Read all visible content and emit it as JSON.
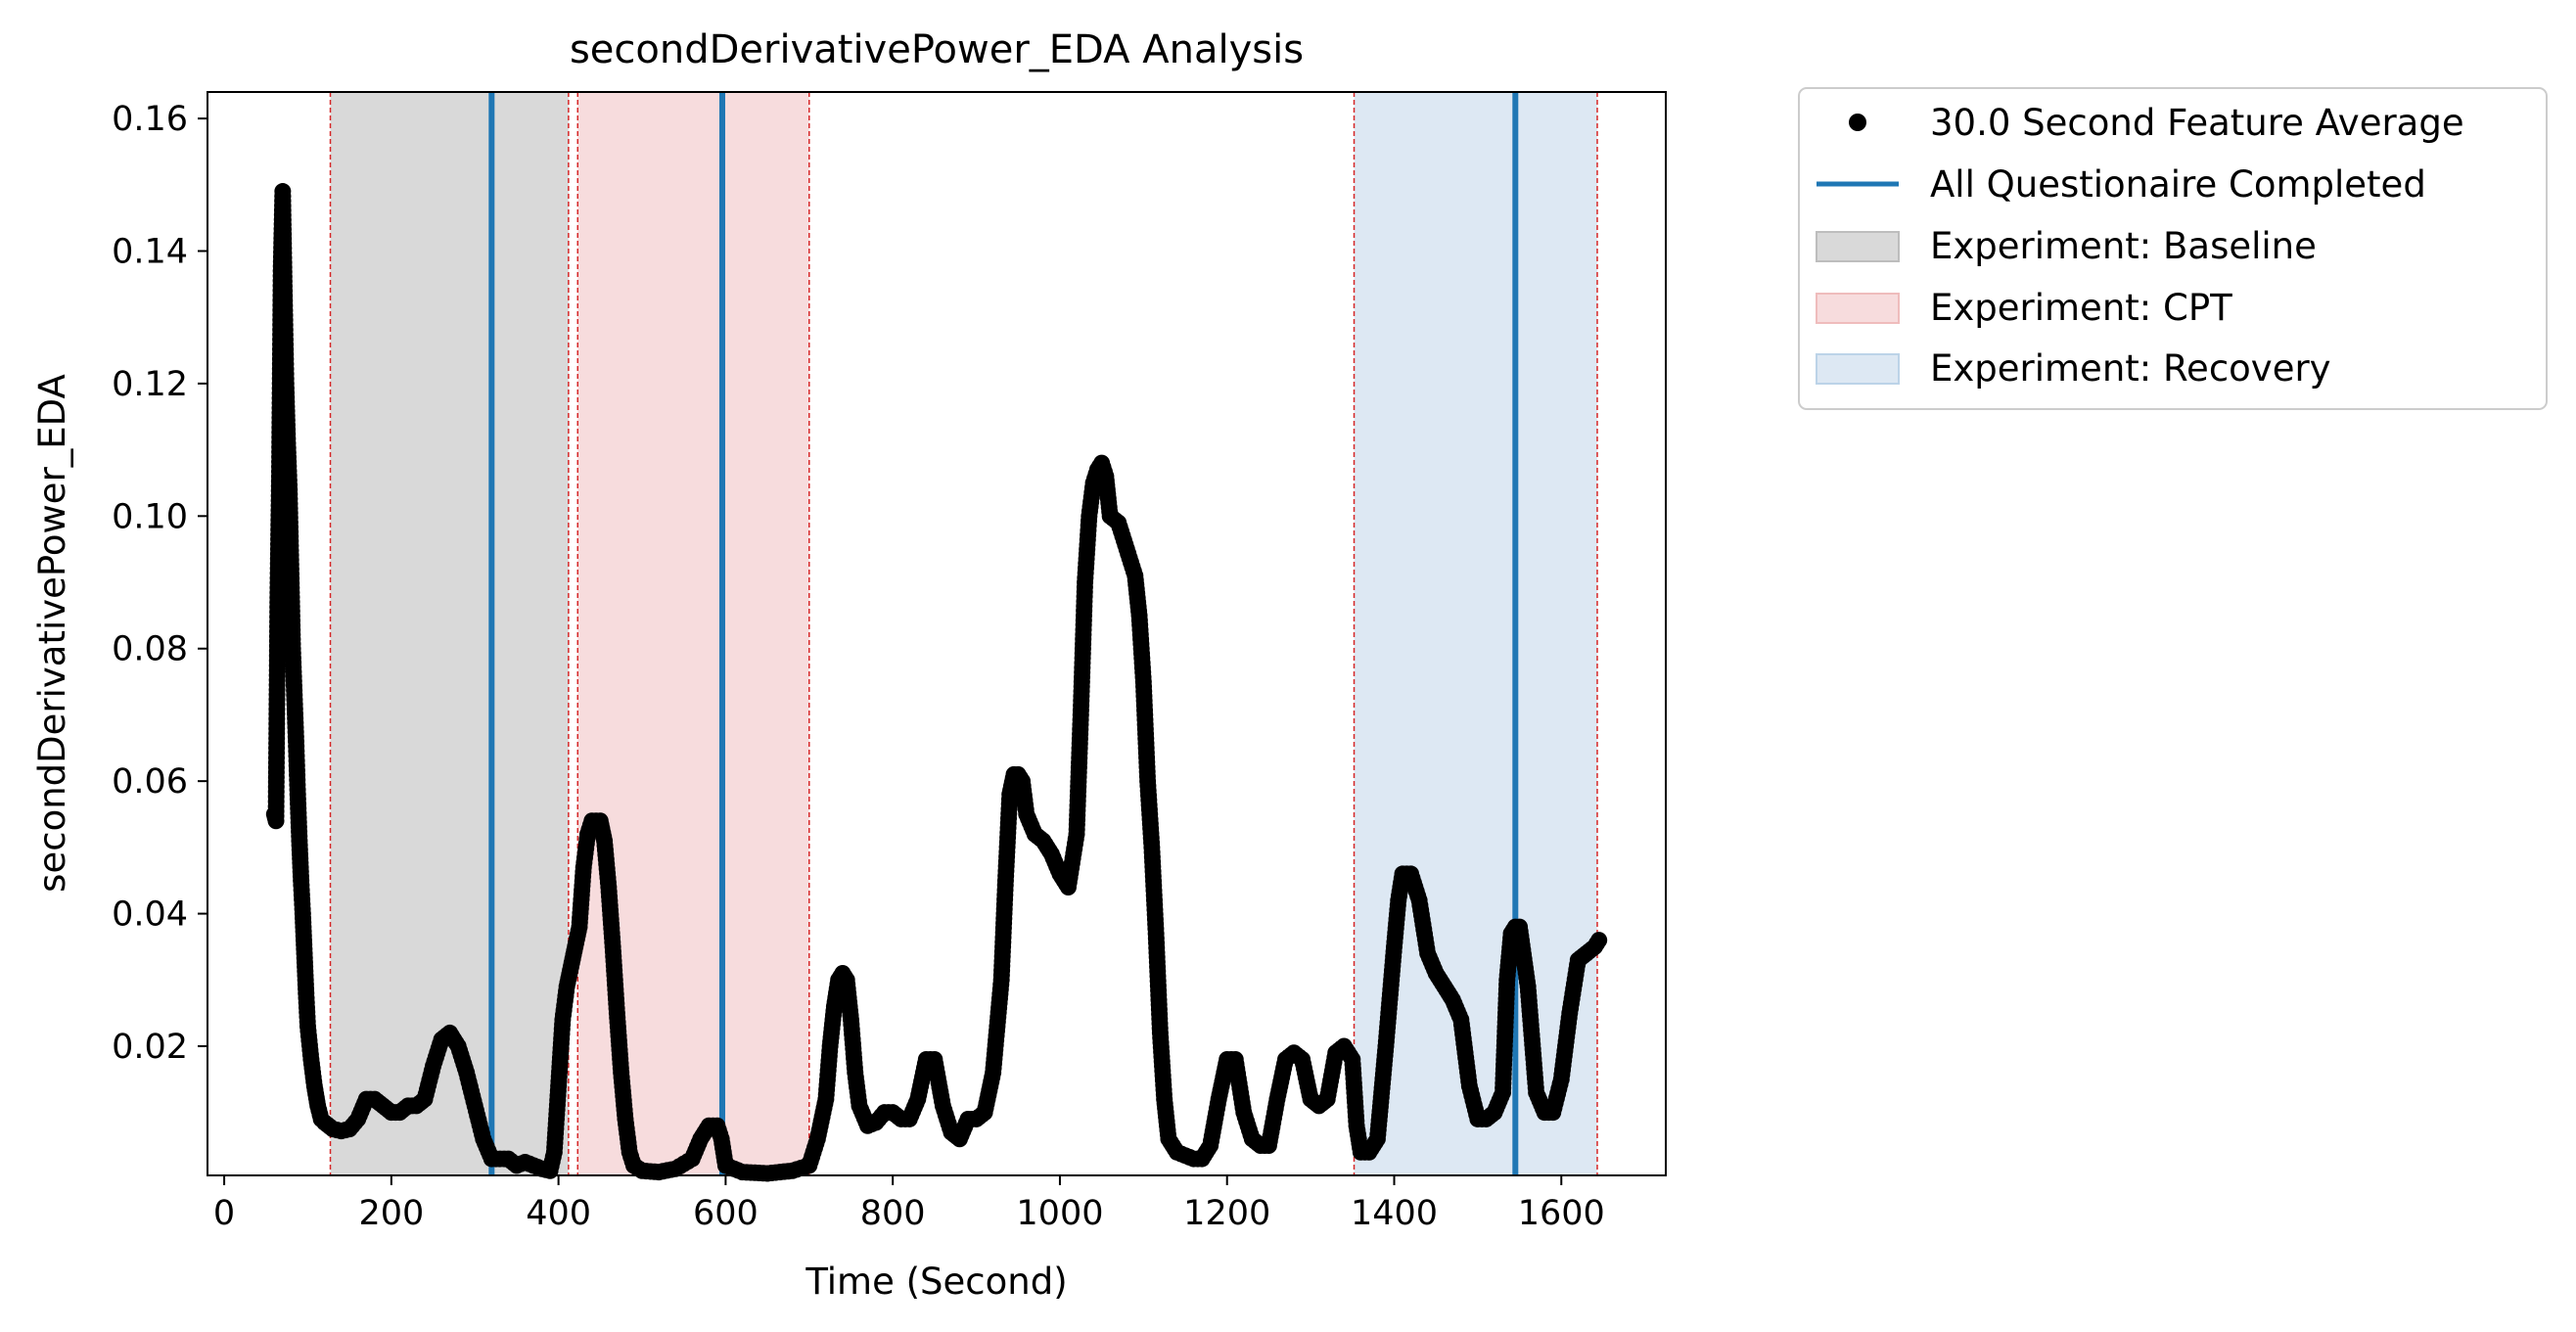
{
  "chart_data": {
    "type": "scatter",
    "title": "secondDerivativePower_EDA Analysis",
    "xlabel": "Time (Second)",
    "ylabel": "secondDerivativePower_EDA",
    "xlim": [
      -20,
      1725
    ],
    "ylim": [
      0.0005,
      0.164
    ],
    "xticks": [
      0,
      200,
      400,
      600,
      800,
      1000,
      1200,
      1400,
      1600
    ],
    "xtick_labels": [
      "0",
      "200",
      "400",
      "600",
      "800",
      "1000",
      "1200",
      "1400",
      "1600"
    ],
    "yticks": [
      0.02,
      0.04,
      0.06,
      0.08,
      0.1,
      0.12,
      0.14,
      0.16
    ],
    "ytick_labels": [
      "0.02",
      "0.04",
      "0.06",
      "0.08",
      "0.10",
      "0.12",
      "0.14",
      "0.16"
    ],
    "grid": false,
    "legend_position": "outside-top-right",
    "series": [
      {
        "name": "30.0 Second Feature Average",
        "marker": "circle",
        "color": "#000000",
        "points": [
          [
            60,
            0.055
          ],
          [
            62,
            0.054
          ],
          [
            64,
            0.087
          ],
          [
            66,
            0.106
          ],
          [
            68,
            0.137
          ],
          [
            70,
            0.149
          ],
          [
            72,
            0.134
          ],
          [
            74,
            0.12
          ],
          [
            76,
            0.111
          ],
          [
            78,
            0.104
          ],
          [
            80,
            0.092
          ],
          [
            82,
            0.08
          ],
          [
            84,
            0.073
          ],
          [
            86,
            0.066
          ],
          [
            88,
            0.058
          ],
          [
            90,
            0.051
          ],
          [
            92,
            0.045
          ],
          [
            94,
            0.04
          ],
          [
            96,
            0.034
          ],
          [
            98,
            0.028
          ],
          [
            100,
            0.023
          ],
          [
            104,
            0.018
          ],
          [
            108,
            0.014
          ],
          [
            112,
            0.011
          ],
          [
            116,
            0.009
          ],
          [
            120,
            0.0085
          ],
          [
            130,
            0.0075
          ],
          [
            140,
            0.0072
          ],
          [
            150,
            0.0075
          ],
          [
            160,
            0.009
          ],
          [
            170,
            0.012
          ],
          [
            180,
            0.012
          ],
          [
            190,
            0.011
          ],
          [
            200,
            0.01
          ],
          [
            210,
            0.01
          ],
          [
            220,
            0.011
          ],
          [
            230,
            0.011
          ],
          [
            240,
            0.012
          ],
          [
            250,
            0.017
          ],
          [
            260,
            0.021
          ],
          [
            270,
            0.022
          ],
          [
            280,
            0.02
          ],
          [
            290,
            0.016
          ],
          [
            300,
            0.011
          ],
          [
            310,
            0.006
          ],
          [
            320,
            0.003
          ],
          [
            330,
            0.003
          ],
          [
            340,
            0.003
          ],
          [
            350,
            0.002
          ],
          [
            360,
            0.0025
          ],
          [
            370,
            0.002
          ],
          [
            380,
            0.0015
          ],
          [
            390,
            0.0012
          ],
          [
            395,
            0.004
          ],
          [
            400,
            0.014
          ],
          [
            405,
            0.024
          ],
          [
            410,
            0.029
          ],
          [
            415,
            0.032
          ],
          [
            420,
            0.035
          ],
          [
            425,
            0.038
          ],
          [
            430,
            0.047
          ],
          [
            435,
            0.052
          ],
          [
            440,
            0.054
          ],
          [
            445,
            0.054
          ],
          [
            450,
            0.054
          ],
          [
            455,
            0.051
          ],
          [
            460,
            0.044
          ],
          [
            465,
            0.035
          ],
          [
            470,
            0.025
          ],
          [
            475,
            0.016
          ],
          [
            480,
            0.009
          ],
          [
            485,
            0.004
          ],
          [
            490,
            0.002
          ],
          [
            500,
            0.0012
          ],
          [
            520,
            0.001
          ],
          [
            540,
            0.0015
          ],
          [
            560,
            0.003
          ],
          [
            570,
            0.006
          ],
          [
            580,
            0.008
          ],
          [
            590,
            0.008
          ],
          [
            595,
            0.006
          ],
          [
            600,
            0.002
          ],
          [
            620,
            0.001
          ],
          [
            650,
            0.0008
          ],
          [
            680,
            0.0012
          ],
          [
            700,
            0.002
          ],
          [
            710,
            0.006
          ],
          [
            720,
            0.012
          ],
          [
            725,
            0.02
          ],
          [
            730,
            0.026
          ],
          [
            735,
            0.03
          ],
          [
            740,
            0.031
          ],
          [
            745,
            0.03
          ],
          [
            750,
            0.024
          ],
          [
            755,
            0.016
          ],
          [
            760,
            0.011
          ],
          [
            770,
            0.008
          ],
          [
            780,
            0.0085
          ],
          [
            790,
            0.01
          ],
          [
            800,
            0.01
          ],
          [
            810,
            0.009
          ],
          [
            820,
            0.009
          ],
          [
            830,
            0.012
          ],
          [
            840,
            0.018
          ],
          [
            850,
            0.018
          ],
          [
            860,
            0.011
          ],
          [
            870,
            0.007
          ],
          [
            880,
            0.006
          ],
          [
            890,
            0.009
          ],
          [
            900,
            0.009
          ],
          [
            910,
            0.01
          ],
          [
            920,
            0.016
          ],
          [
            930,
            0.03
          ],
          [
            935,
            0.045
          ],
          [
            940,
            0.058
          ],
          [
            945,
            0.061
          ],
          [
            950,
            0.061
          ],
          [
            955,
            0.06
          ],
          [
            960,
            0.055
          ],
          [
            970,
            0.052
          ],
          [
            980,
            0.051
          ],
          [
            990,
            0.049
          ],
          [
            1000,
            0.046
          ],
          [
            1010,
            0.044
          ],
          [
            1020,
            0.052
          ],
          [
            1025,
            0.07
          ],
          [
            1030,
            0.09
          ],
          [
            1035,
            0.1
          ],
          [
            1040,
            0.105
          ],
          [
            1045,
            0.107
          ],
          [
            1050,
            0.108
          ],
          [
            1055,
            0.106
          ],
          [
            1060,
            0.1
          ],
          [
            1070,
            0.099
          ],
          [
            1080,
            0.095
          ],
          [
            1090,
            0.091
          ],
          [
            1095,
            0.085
          ],
          [
            1100,
            0.075
          ],
          [
            1105,
            0.06
          ],
          [
            1110,
            0.05
          ],
          [
            1115,
            0.037
          ],
          [
            1120,
            0.022
          ],
          [
            1125,
            0.012
          ],
          [
            1130,
            0.006
          ],
          [
            1140,
            0.004
          ],
          [
            1150,
            0.0035
          ],
          [
            1160,
            0.003
          ],
          [
            1170,
            0.003
          ],
          [
            1180,
            0.005
          ],
          [
            1190,
            0.012
          ],
          [
            1200,
            0.018
          ],
          [
            1210,
            0.018
          ],
          [
            1220,
            0.01
          ],
          [
            1230,
            0.006
          ],
          [
            1240,
            0.005
          ],
          [
            1250,
            0.005
          ],
          [
            1260,
            0.012
          ],
          [
            1270,
            0.018
          ],
          [
            1280,
            0.019
          ],
          [
            1290,
            0.018
          ],
          [
            1300,
            0.012
          ],
          [
            1310,
            0.011
          ],
          [
            1320,
            0.012
          ],
          [
            1330,
            0.019
          ],
          [
            1340,
            0.02
          ],
          [
            1350,
            0.018
          ],
          [
            1355,
            0.008
          ],
          [
            1360,
            0.004
          ],
          [
            1370,
            0.004
          ],
          [
            1380,
            0.006
          ],
          [
            1390,
            0.02
          ],
          [
            1400,
            0.035
          ],
          [
            1405,
            0.042
          ],
          [
            1410,
            0.046
          ],
          [
            1420,
            0.046
          ],
          [
            1430,
            0.042
          ],
          [
            1440,
            0.034
          ],
          [
            1450,
            0.031
          ],
          [
            1460,
            0.029
          ],
          [
            1470,
            0.027
          ],
          [
            1480,
            0.024
          ],
          [
            1490,
            0.014
          ],
          [
            1500,
            0.009
          ],
          [
            1510,
            0.009
          ],
          [
            1520,
            0.01
          ],
          [
            1530,
            0.013
          ],
          [
            1535,
            0.03
          ],
          [
            1540,
            0.037
          ],
          [
            1545,
            0.038
          ],
          [
            1550,
            0.038
          ],
          [
            1560,
            0.029
          ],
          [
            1570,
            0.013
          ],
          [
            1580,
            0.01
          ],
          [
            1590,
            0.01
          ],
          [
            1600,
            0.015
          ],
          [
            1610,
            0.025
          ],
          [
            1620,
            0.033
          ],
          [
            1630,
            0.034
          ],
          [
            1640,
            0.035
          ],
          [
            1645,
            0.036
          ]
        ]
      }
    ],
    "vertical_lines": {
      "name": "All Questionaire Completed",
      "color": "#1f77b4",
      "x": [
        320,
        596,
        1545
      ]
    },
    "regions": [
      {
        "name": "Experiment: Baseline",
        "x0": 127,
        "x1": 412,
        "color": "#d9d9d9"
      },
      {
        "name": "Experiment: CPT",
        "x0": 423,
        "x1": 700,
        "color": "#f7dcdd"
      },
      {
        "name": "Experiment: Recovery",
        "x0": 1352,
        "x1": 1643,
        "color": "#dde8f3"
      }
    ],
    "region_edge_color": "#d62728"
  }
}
